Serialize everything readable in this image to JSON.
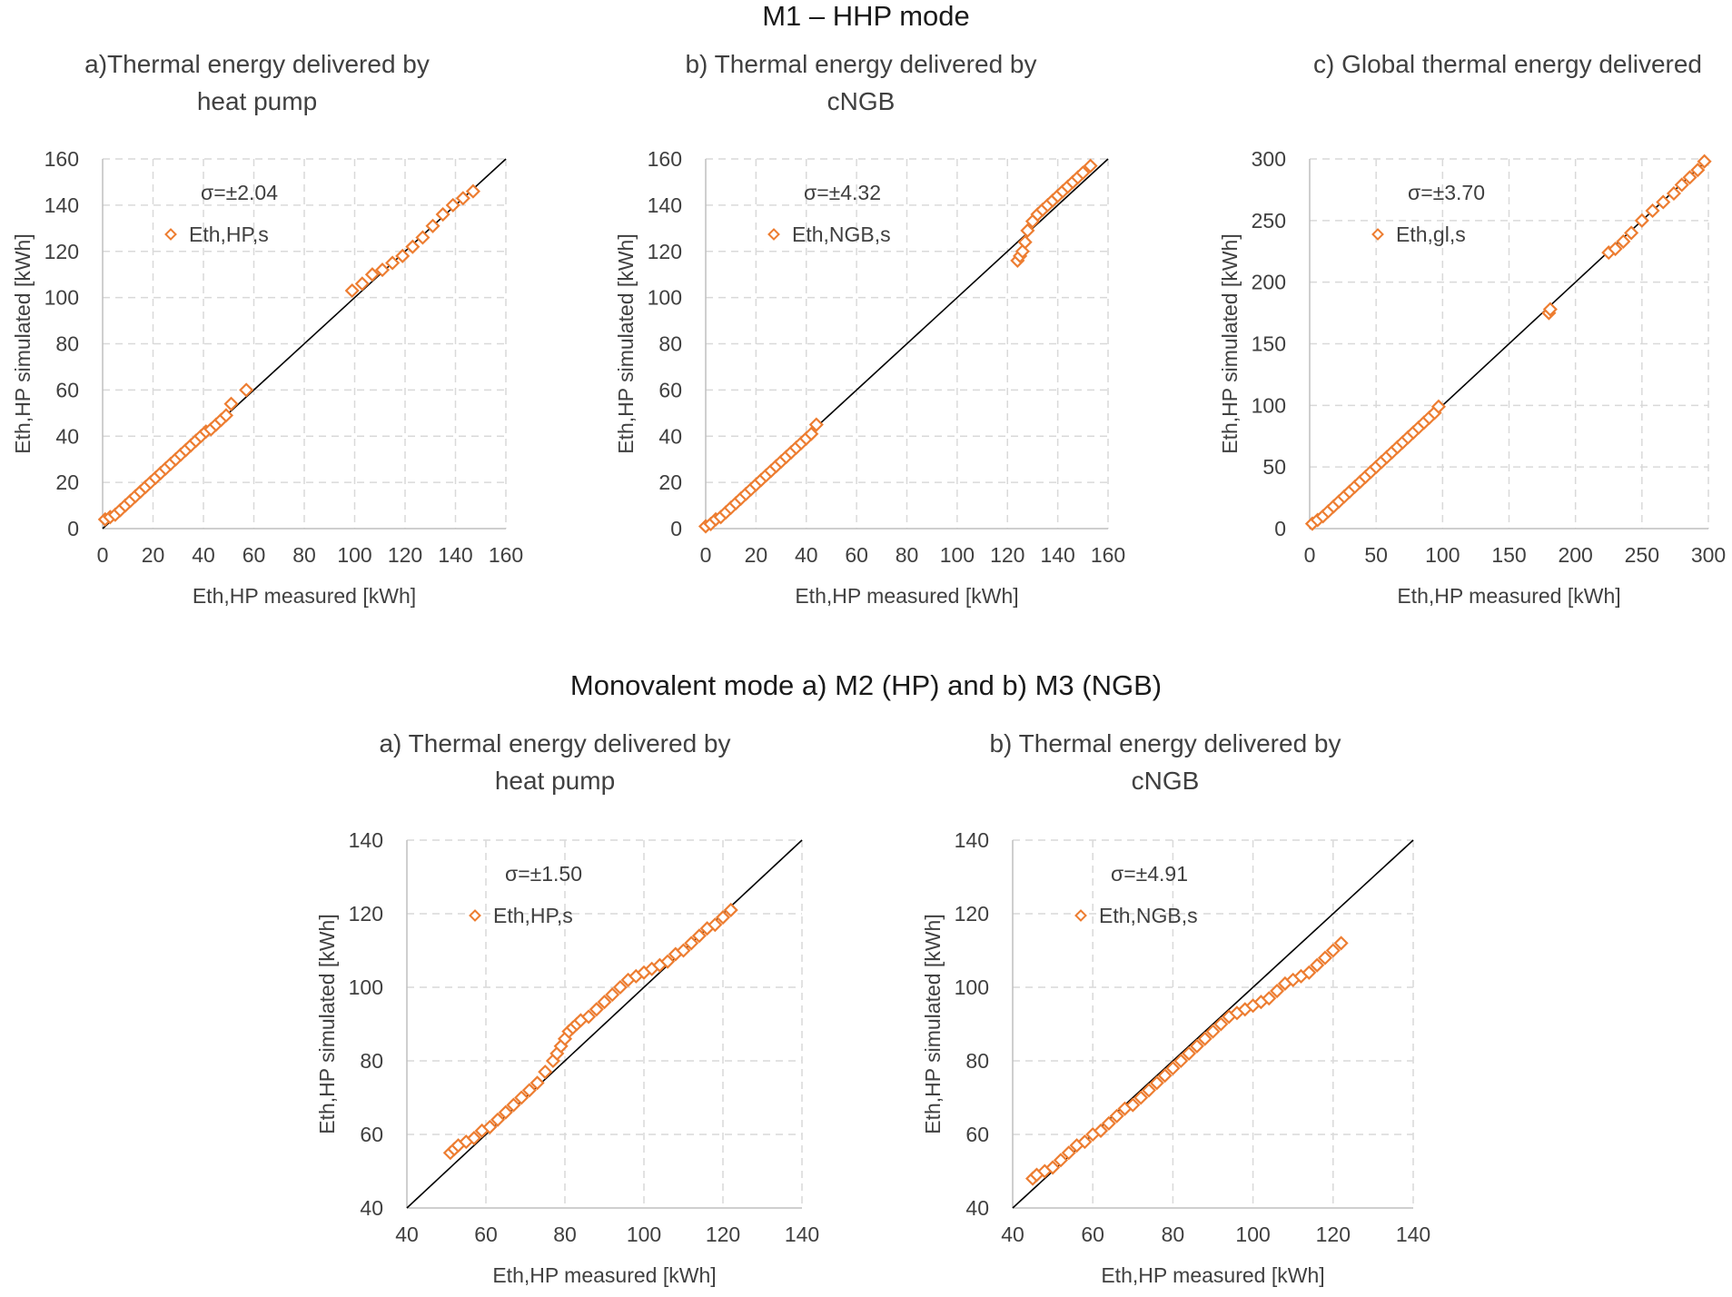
{
  "figure": {
    "section1_title": "M1 – HHP mode",
    "section2_title": "Monovalent mode a) M2 (HP) and b) M3 (NGB)"
  },
  "colors": {
    "marker": "#ed7d31",
    "axis": "#bfbfbf",
    "grid": "#d9d9d9",
    "line": "#000000"
  },
  "chart_data": [
    {
      "id": "m1a",
      "type": "scatter",
      "title_lines": [
        "a)Thermal energy delivered by",
        "heat pump"
      ],
      "xlabel": "Eth,HP measured [kWh]",
      "ylabel": "Eth,HP simulated [kWh]",
      "xlim": [
        0,
        160
      ],
      "ylim": [
        0,
        160
      ],
      "xstep": 20,
      "ystep": 20,
      "grid": true,
      "sigma": "σ=±2.04",
      "legend": "Eth,HP,s",
      "legend_position": "top-left",
      "reference_line": [
        [
          0,
          0
        ],
        [
          160,
          160
        ]
      ],
      "series": [
        {
          "name": "Eth,HP,s",
          "x": [
            1,
            3,
            5,
            7,
            9,
            11,
            13,
            15,
            17,
            19,
            21,
            23,
            25,
            27,
            29,
            31,
            33,
            35,
            37,
            39,
            41,
            43,
            45,
            47,
            49,
            51,
            57,
            99,
            103,
            107,
            111,
            115,
            119,
            123,
            127,
            131,
            135,
            139,
            143,
            147
          ],
          "y": [
            4,
            5,
            6,
            8,
            10,
            12,
            14,
            16,
            18,
            20,
            22,
            24,
            26,
            28,
            30,
            32,
            34,
            36,
            38,
            40,
            42,
            43,
            45,
            47,
            49,
            54,
            60,
            103,
            106,
            110,
            112,
            115,
            118,
            122,
            126,
            131,
            136,
            140,
            143,
            146
          ]
        }
      ]
    },
    {
      "id": "m1b",
      "type": "scatter",
      "title_lines": [
        "b) Thermal energy delivered by",
        "cNGB"
      ],
      "xlabel": "Eth,HP measured [kWh]",
      "ylabel": "Eth,HP simulated [kWh]",
      "xlim": [
        0,
        160
      ],
      "ylim": [
        0,
        160
      ],
      "xstep": 20,
      "ystep": 20,
      "grid": true,
      "sigma": "σ=±4.32",
      "legend": "Eth,NGB,s",
      "legend_position": "top-left",
      "reference_line": [
        [
          0,
          0
        ],
        [
          160,
          160
        ]
      ],
      "series": [
        {
          "name": "Eth,NGB,s",
          "x": [
            0,
            2,
            4,
            6,
            8,
            10,
            12,
            14,
            16,
            18,
            20,
            22,
            24,
            26,
            28,
            30,
            32,
            34,
            36,
            38,
            40,
            42,
            44,
            124,
            125,
            126,
            127,
            128,
            130,
            132,
            134,
            136,
            138,
            140,
            142,
            144,
            146,
            148,
            150,
            153
          ],
          "y": [
            1,
            2,
            4,
            5,
            7,
            9,
            11,
            13,
            15,
            17,
            19,
            21,
            23,
            25,
            27,
            29,
            31,
            33,
            35,
            37,
            39,
            41,
            45,
            116,
            118,
            120,
            124,
            129,
            133,
            136,
            138,
            140,
            142,
            144,
            146,
            148,
            150,
            152,
            154,
            157
          ]
        }
      ]
    },
    {
      "id": "m1c",
      "type": "scatter",
      "title_lines": [
        "c) Global thermal energy delivered"
      ],
      "xlabel": "Eth,HP measured [kWh]",
      "ylabel": "Eth,HP simulated [kWh]",
      "xlim": [
        0,
        300
      ],
      "ylim": [
        0,
        300
      ],
      "xstep": 50,
      "ystep": 50,
      "grid": true,
      "sigma": "σ=±3.70",
      "legend": "Eth,gl,s",
      "legend_position": "top-left",
      "reference_line": [
        [
          0,
          0
        ],
        [
          300,
          300
        ]
      ],
      "series": [
        {
          "name": "Eth,gl,s",
          "x": [
            2,
            6,
            10,
            14,
            18,
            22,
            26,
            30,
            34,
            38,
            42,
            46,
            50,
            54,
            58,
            62,
            66,
            70,
            74,
            78,
            82,
            86,
            90,
            94,
            97,
            180,
            181,
            225,
            230,
            236,
            242,
            250,
            258,
            266,
            274,
            280,
            286,
            292,
            297
          ],
          "y": [
            4,
            7,
            10,
            14,
            18,
            22,
            26,
            30,
            34,
            38,
            42,
            46,
            50,
            54,
            58,
            62,
            66,
            70,
            74,
            78,
            82,
            86,
            90,
            94,
            99,
            175,
            178,
            224,
            227,
            233,
            240,
            250,
            258,
            265,
            272,
            279,
            285,
            291,
            298
          ]
        }
      ]
    },
    {
      "id": "m2",
      "type": "scatter",
      "title_lines": [
        "a) Thermal energy delivered by",
        "heat pump"
      ],
      "xlabel": "Eth,HP measured [kWh]",
      "ylabel": "Eth,HP simulated [kWh]",
      "xlim": [
        40,
        140
      ],
      "ylim": [
        40,
        140
      ],
      "xstep": 20,
      "ystep": 20,
      "grid": true,
      "sigma": "σ=±1.50",
      "legend": "Eth,HP,s",
      "legend_position": "top-left",
      "reference_line": [
        [
          40,
          40
        ],
        [
          140,
          140
        ]
      ],
      "series": [
        {
          "name": "Eth,HP,s",
          "x": [
            51,
            52,
            53,
            55,
            57,
            59,
            61,
            63,
            65,
            67,
            69,
            71,
            73,
            75,
            77,
            78,
            79,
            80,
            81,
            82,
            83,
            84,
            86,
            88,
            90,
            92,
            94,
            96,
            98,
            100,
            102,
            104,
            106,
            108,
            110,
            112,
            114,
            116,
            118,
            120,
            122
          ],
          "y": [
            55,
            56,
            57,
            58,
            59,
            61,
            62,
            64,
            66,
            68,
            70,
            72,
            74,
            77,
            80,
            82,
            84,
            86,
            88,
            89,
            90,
            91,
            92,
            94,
            96,
            98,
            100,
            102,
            103,
            104,
            105,
            106,
            107,
            109,
            110,
            112,
            114,
            116,
            117,
            119,
            121
          ]
        }
      ]
    },
    {
      "id": "m3",
      "type": "scatter",
      "title_lines": [
        "b) Thermal energy delivered by",
        "cNGB"
      ],
      "xlabel": "Eth,HP measured [kWh]",
      "ylabel": "Eth,HP simulated [kWh]",
      "xlim": [
        40,
        140
      ],
      "ylim": [
        40,
        140
      ],
      "xstep": 20,
      "ystep": 20,
      "grid": true,
      "sigma": "σ=±4.91",
      "legend": "Eth,NGB,s",
      "legend_position": "top-left",
      "reference_line": [
        [
          40,
          40
        ],
        [
          140,
          140
        ]
      ],
      "series": [
        {
          "name": "Eth,NGB,s",
          "x": [
            45,
            46,
            48,
            50,
            52,
            54,
            56,
            58,
            60,
            62,
            64,
            66,
            68,
            70,
            72,
            74,
            76,
            78,
            80,
            82,
            84,
            86,
            88,
            90,
            92,
            94,
            96,
            98,
            100,
            102,
            104,
            106,
            108,
            110,
            112,
            114,
            116,
            118,
            120,
            122
          ],
          "y": [
            48,
            49,
            50,
            51,
            53,
            55,
            57,
            58,
            60,
            61,
            63,
            65,
            67,
            68,
            70,
            72,
            74,
            76,
            78,
            80,
            82,
            84,
            86,
            88,
            90,
            92,
            93,
            94,
            95,
            96,
            97,
            99,
            101,
            102,
            103,
            104,
            106,
            108,
            110,
            112
          ]
        }
      ]
    }
  ]
}
